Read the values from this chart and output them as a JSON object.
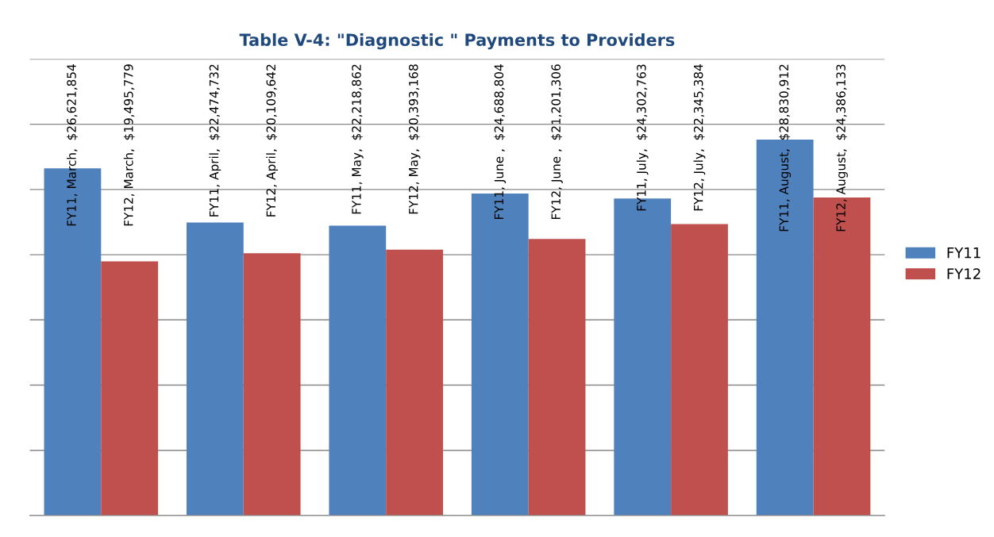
{
  "chart_data": {
    "type": "bar",
    "title": "Table V-4: \"Diagnostic \" Payments to Providers",
    "categories": [
      null,
      null,
      null,
      null,
      null,
      null
    ],
    "series": [
      {
        "name": "FY11",
        "color": "#4f81bd",
        "values": [
          26621854,
          22474732,
          22218862,
          24688804,
          24302763,
          28830912
        ],
        "value_labels": [
          "FY11, March,  $26,621,854",
          "FY11, April,  $22,474,732",
          "FY11, May,  $22,218,862",
          "FY11, June ,  $24,688,804",
          "FY11, July,  $24,302,763",
          "FY11, August,  $28,830,912"
        ]
      },
      {
        "name": "FY12",
        "color": "#c0504d",
        "values": [
          19495779,
          20109642,
          20393168,
          21201306,
          22345384,
          24386133
        ],
        "value_labels": [
          "FY12, March,  $19,495,779",
          "FY12, April,  $20,109,642",
          "FY12, May,  $20,393,168",
          "FY12, June ,  $21,201,306",
          "FY12, July,  $22,345,384",
          "FY12, August,  $24,386,133"
        ]
      }
    ],
    "ylim": [
      0,
      35000000
    ],
    "yticks": [
      {
        "value": 0,
        "label": null
      },
      {
        "value": 5000000,
        "label": null
      },
      {
        "value": 10000000,
        "label": null
      },
      {
        "value": 15000000,
        "label": null
      },
      {
        "value": 20000000,
        "label": null
      },
      {
        "value": 25000000,
        "label": null
      },
      {
        "value": 30000000,
        "label": null
      },
      {
        "value": 35000000,
        "label": null
      }
    ],
    "grid": "y",
    "legend": "right"
  }
}
